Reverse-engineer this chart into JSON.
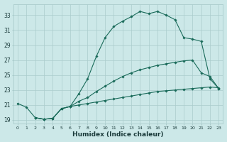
{
  "xlabel": "Humidex (Indice chaleur)",
  "bg_color": "#cce8e8",
  "grid_color": "#aacccc",
  "line_color": "#1a6b5a",
  "xlim": [
    -0.5,
    23.5
  ],
  "ylim": [
    18.5,
    34.5
  ],
  "xticks": [
    0,
    1,
    2,
    3,
    4,
    5,
    6,
    7,
    8,
    9,
    10,
    11,
    12,
    13,
    14,
    15,
    16,
    17,
    18,
    19,
    20,
    21,
    22,
    23
  ],
  "yticks": [
    19,
    21,
    23,
    25,
    27,
    29,
    31,
    33
  ],
  "lines": [
    {
      "x": [
        0,
        1,
        2,
        3,
        4,
        5,
        6,
        7,
        8,
        9,
        10,
        11,
        12,
        13,
        14,
        15,
        16,
        17,
        18,
        19,
        20,
        21,
        22,
        23
      ],
      "y": [
        21.2,
        20.7,
        19.3,
        19.1,
        19.2,
        20.5,
        20.8,
        21.0,
        21.2,
        21.4,
        21.6,
        21.8,
        22.0,
        22.2,
        22.4,
        22.6,
        22.8,
        22.9,
        23.0,
        23.1,
        23.2,
        23.3,
        23.4,
        23.3
      ]
    },
    {
      "x": [
        2,
        3,
        4,
        5,
        6,
        7,
        8,
        9,
        10,
        11,
        12,
        13,
        14,
        15,
        16,
        17,
        18,
        19,
        20,
        21,
        22,
        23
      ],
      "y": [
        19.3,
        19.1,
        19.2,
        20.5,
        20.8,
        21.5,
        22.0,
        22.8,
        23.5,
        24.2,
        24.8,
        25.3,
        25.7,
        26.0,
        26.3,
        26.5,
        26.7,
        26.9,
        27.0,
        25.3,
        24.8,
        23.2
      ]
    },
    {
      "x": [
        2,
        3,
        4,
        5,
        6,
        7,
        8,
        9,
        10,
        11,
        12,
        13,
        14,
        15,
        16,
        17,
        18,
        19,
        20,
        21,
        22,
        23
      ],
      "y": [
        19.3,
        19.1,
        19.2,
        20.5,
        20.8,
        22.5,
        24.5,
        27.5,
        30.0,
        31.5,
        32.2,
        32.8,
        33.5,
        33.2,
        33.5,
        33.0,
        32.4,
        30.0,
        29.8,
        29.5,
        24.5,
        23.2
      ]
    }
  ]
}
